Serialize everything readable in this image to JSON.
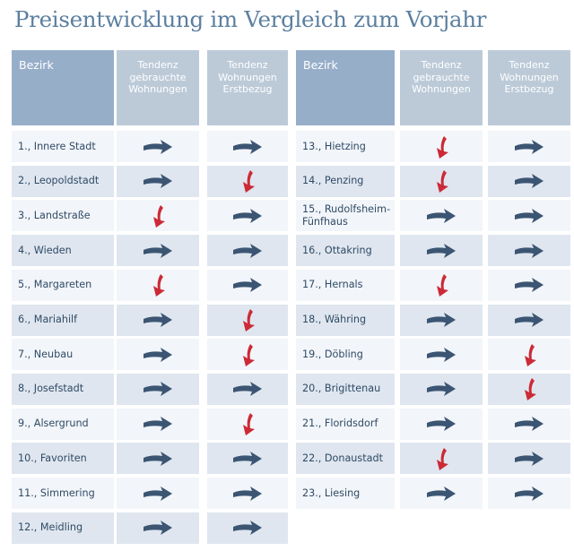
{
  "title": "Preisentwicklung im Vergleich zum Vorjahr",
  "headers": {
    "district": "Bezirk",
    "used": "Tendenz gebrauchte Wohnungen",
    "new": "Tendenz Wohnungen Erstbezug"
  },
  "colors": {
    "header_dark": "#97aec9",
    "header_light": "#bccad8",
    "arrow_neutral": "#3b5573",
    "arrow_down": "#cc2a36",
    "title": "#5b7f9f"
  },
  "districts": [
    {
      "name": "1., Innere Stadt",
      "used": "right",
      "new": "right"
    },
    {
      "name": "2., Leopoldstadt",
      "used": "right",
      "new": "down"
    },
    {
      "name": "3., Landstraße",
      "used": "down",
      "new": "right"
    },
    {
      "name": "4., Wieden",
      "used": "right",
      "new": "right"
    },
    {
      "name": "5., Margareten",
      "used": "down",
      "new": "right"
    },
    {
      "name": "6., Mariahilf",
      "used": "right",
      "new": "down"
    },
    {
      "name": "7., Neubau",
      "used": "right",
      "new": "down"
    },
    {
      "name": "8., Josefstadt",
      "used": "right",
      "new": "right"
    },
    {
      "name": "9., Alsergrund",
      "used": "right",
      "new": "down"
    },
    {
      "name": "10., Favoriten",
      "used": "right",
      "new": "right"
    },
    {
      "name": "11., Simmering",
      "used": "right",
      "new": "right"
    },
    {
      "name": "12., Meidling",
      "used": "right",
      "new": "right"
    },
    {
      "name": "13., Hietzing",
      "used": "down",
      "new": "right"
    },
    {
      "name": "14., Penzing",
      "used": "down",
      "new": "right"
    },
    {
      "name": "15., Rudolfsheim-Fünfhaus",
      "used": "right",
      "new": "right"
    },
    {
      "name": "16., Ottakring",
      "used": "right",
      "new": "right"
    },
    {
      "name": "17., Hernals",
      "used": "down",
      "new": "right"
    },
    {
      "name": "18., Währing",
      "used": "right",
      "new": "right"
    },
    {
      "name": "19., Döbling",
      "used": "right",
      "new": "down"
    },
    {
      "name": "20., Brigittenau",
      "used": "right",
      "new": "down"
    },
    {
      "name": "21., Floridsdorf",
      "used": "right",
      "new": "right"
    },
    {
      "name": "22., Donaustadt",
      "used": "down",
      "new": "right"
    },
    {
      "name": "23., Liesing",
      "used": "right",
      "new": "right"
    }
  ]
}
